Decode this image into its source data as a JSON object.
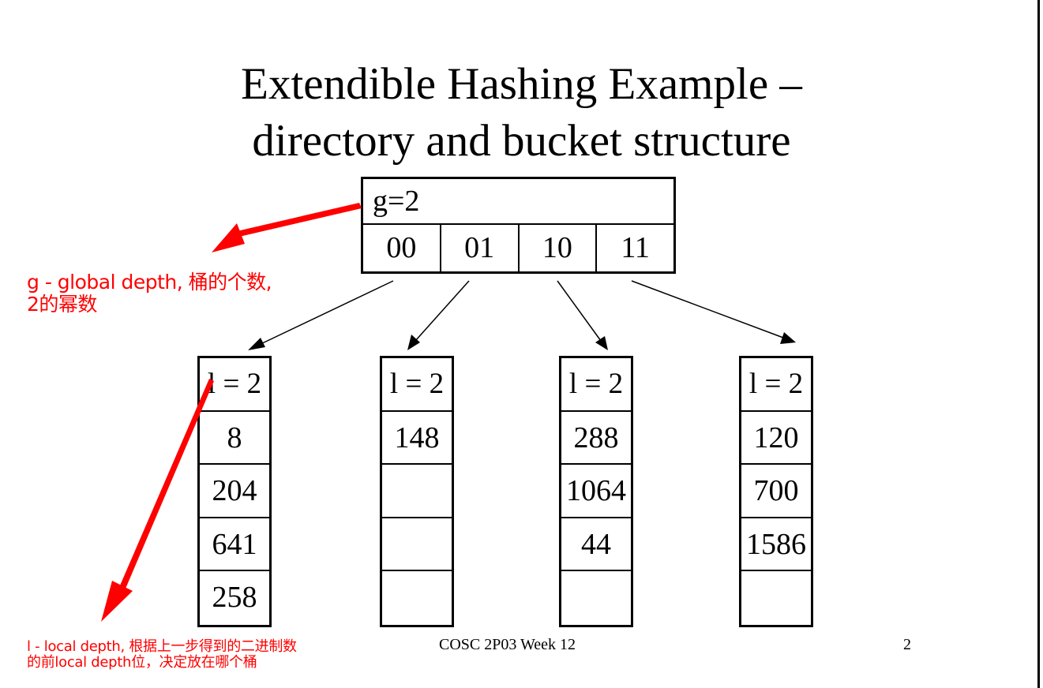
{
  "slide": {
    "title_line1": "Extendible Hashing Example –",
    "title_line2": "directory and bucket structure",
    "footer": "COSC 2P03 Week 12",
    "page_number": "2"
  },
  "directory": {
    "global_depth_label": "g=2",
    "entries": [
      "00",
      "01",
      "10",
      "11"
    ]
  },
  "buckets": [
    {
      "depth_label": "l = 2",
      "values": [
        "8",
        "204",
        "641",
        "258"
      ]
    },
    {
      "depth_label": "l = 2",
      "values": [
        "148",
        "",
        "",
        ""
      ]
    },
    {
      "depth_label": "l = 2",
      "values": [
        "288",
        "1064",
        "44",
        ""
      ]
    },
    {
      "depth_label": "l = 2",
      "values": [
        "120",
        "700",
        "1586",
        ""
      ]
    }
  ],
  "annotations": {
    "global_line1": "g - global depth, 桶的个数,",
    "global_line2": "2的幂数",
    "local_line1": "l - local depth, 根据上一步得到的二进制数",
    "local_line2": "的前local depth位，决定放在哪个桶"
  },
  "colors": {
    "annotation": "#ff0000",
    "structure": "#000000"
  }
}
